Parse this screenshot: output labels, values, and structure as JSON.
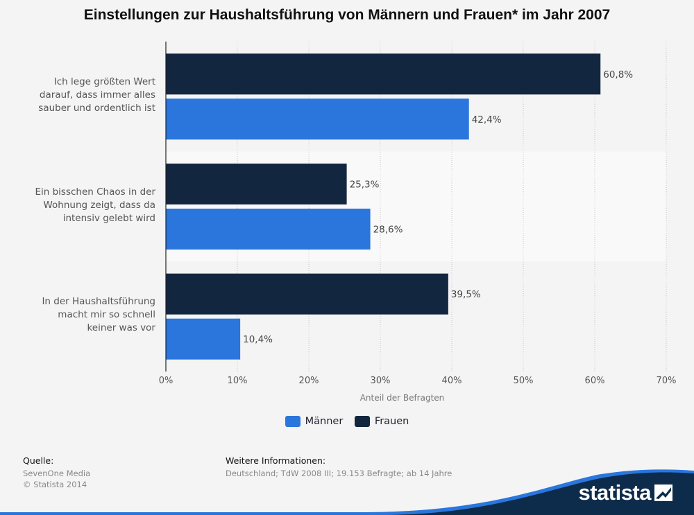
{
  "title": "Einstellungen zur Haushaltsführung von Männern und Frauen* im Jahr 2007",
  "chart_data": {
    "type": "bar",
    "orientation": "horizontal",
    "categories": [
      "Ich lege größten Wert darauf, dass immer alles sauber und ordentlich ist",
      "Ein bisschen Chaos in der Wohnung zeigt, dass da intensiv gelebt wird",
      "In der Haushaltsführung macht mir so schnell keiner was vor"
    ],
    "category_lines": [
      [
        "Ich lege größten Wert",
        "darauf, dass immer alles",
        "sauber und ordentlich ist"
      ],
      [
        "Ein bisschen Chaos in der",
        "Wohnung zeigt, dass da",
        "intensiv gelebt wird"
      ],
      [
        "In der Haushaltsführung",
        "macht mir so schnell",
        "keiner was vor"
      ]
    ],
    "series": [
      {
        "name": "Frauen",
        "values": [
          60.8,
          25.3,
          39.5
        ],
        "labels": [
          "60,8%",
          "25,3%",
          "39,5%"
        ],
        "color": "#12263f"
      },
      {
        "name": "Männer",
        "values": [
          42.4,
          28.6,
          10.4
        ],
        "labels": [
          "42,4%",
          "28,6%",
          "10,4%"
        ],
        "color": "#2a76dd"
      }
    ],
    "xlabel": "Anteil der Befragten",
    "xlim": [
      0,
      70
    ],
    "xticks": [
      "0%",
      "10%",
      "20%",
      "30%",
      "40%",
      "50%",
      "60%",
      "70%"
    ],
    "grid": true,
    "legend_position": "bottom"
  },
  "legend": [
    {
      "name": "Männer",
      "color": "#2a76dd"
    },
    {
      "name": "Frauen",
      "color": "#12263f"
    }
  ],
  "footer": {
    "source_heading": "Quelle:",
    "source_lines": [
      "SevenOne Media",
      "© Statista 2014"
    ],
    "info_heading": "Weitere Informationen:",
    "info_line": "Deutschland; TdW 2008 III; 19.153 Befragte; ab 14 Jahre"
  },
  "brand": {
    "name": "statista",
    "colors": {
      "dark": "#0d2b4a",
      "accent": "#2a76dd"
    }
  }
}
